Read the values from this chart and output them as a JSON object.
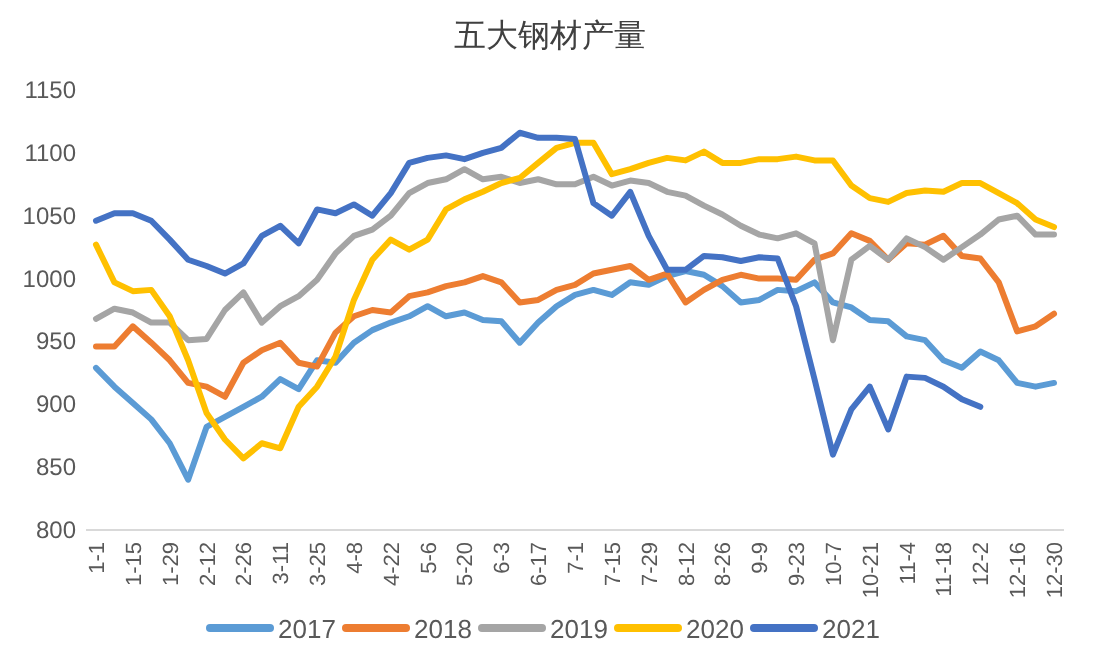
{
  "chart_data": {
    "type": "line",
    "title": "五大钢材产量",
    "categories": [
      "1-1",
      null,
      "1-15",
      null,
      "1-29",
      null,
      "2-12",
      null,
      "2-26",
      null,
      "3-11",
      null,
      "3-25",
      null,
      "4-8",
      null,
      "4-22",
      null,
      "5-6",
      null,
      "5-20",
      null,
      "6-3",
      null,
      "6-17",
      null,
      "7-1",
      null,
      "7-15",
      null,
      "7-29",
      null,
      "8-12",
      null,
      "8-26",
      null,
      "9-9",
      null,
      "9-23",
      null,
      "10-7",
      null,
      "10-21",
      null,
      "11-4",
      null,
      "11-18",
      null,
      "12-2",
      null,
      "12-16",
      null,
      "12-30"
    ],
    "ylim": [
      800,
      1150
    ],
    "yticks": [
      800,
      850,
      900,
      950,
      1000,
      1050,
      1100,
      1150
    ],
    "legend": "bottom",
    "series": [
      {
        "name": "2017",
        "color": "#5b9bd5",
        "values": [
          929,
          914,
          901,
          888,
          869,
          840,
          882,
          890,
          898,
          906,
          920,
          912,
          935,
          933,
          949,
          959,
          965,
          970,
          978,
          970,
          973,
          967,
          966,
          949,
          965,
          978,
          987,
          991,
          987,
          997,
          995,
          1002,
          1006,
          1003,
          994,
          981,
          983,
          991,
          990,
          997,
          981,
          977,
          967,
          966,
          954,
          951,
          935,
          929,
          942,
          935,
          917,
          914,
          917
        ]
      },
      {
        "name": "2018",
        "color": "#ed7d31",
        "values": [
          946,
          946,
          962,
          949,
          935,
          917,
          914,
          906,
          933,
          943,
          949,
          933,
          930,
          957,
          970,
          975,
          973,
          986,
          989,
          994,
          997,
          1002,
          997,
          981,
          983,
          991,
          995,
          1004,
          1007,
          1010,
          999,
          1004,
          981,
          991,
          999,
          1003,
          1000,
          1000,
          999,
          1015,
          1020,
          1036,
          1030,
          1015,
          1028,
          1027,
          1034,
          1018,
          1016,
          997,
          958,
          962,
          972
        ]
      },
      {
        "name": "2019",
        "color": "#a5a5a5",
        "values": [
          968,
          976,
          973,
          965,
          965,
          951,
          952,
          975,
          989,
          965,
          978,
          986,
          999,
          1020,
          1034,
          1039,
          1050,
          1068,
          1076,
          1079,
          1087,
          1079,
          1081,
          1076,
          1079,
          1075,
          1075,
          1081,
          1074,
          1078,
          1076,
          1069,
          1066,
          1058,
          1051,
          1042,
          1035,
          1032,
          1036,
          1028,
          951,
          1015,
          1026,
          1015,
          1032,
          1025,
          1015,
          1025,
          1035,
          1047,
          1050,
          1035,
          1035
        ]
      },
      {
        "name": "2020",
        "color": "#ffc000",
        "values": [
          1027,
          997,
          990,
          991,
          970,
          935,
          893,
          872,
          857,
          869,
          865,
          898,
          914,
          938,
          983,
          1015,
          1031,
          1023,
          1031,
          1055,
          1063,
          1069,
          1076,
          1080,
          1092,
          1104,
          1108,
          1108,
          1083,
          1087,
          1092,
          1096,
          1094,
          1101,
          1092,
          1092,
          1095,
          1095,
          1097,
          1094,
          1094,
          1074,
          1064,
          1061,
          1068,
          1070,
          1069,
          1076,
          1076,
          1068,
          1060,
          1047,
          1041
        ]
      },
      {
        "name": "2021",
        "color": "#4472c4",
        "values": [
          1046,
          1052,
          1052,
          1046,
          1031,
          1015,
          1010,
          1004,
          1012,
          1034,
          1042,
          1028,
          1055,
          1052,
          1059,
          1050,
          1068,
          1092,
          1096,
          1098,
          1095,
          1100,
          1104,
          1116,
          1112,
          1112,
          1111,
          1060,
          1050,
          1069,
          1034,
          1007,
          1007,
          1018,
          1017,
          1014,
          1017,
          1016,
          978,
          920,
          860,
          896,
          914,
          880,
          922,
          921,
          914,
          904,
          898,
          null,
          null,
          null,
          null
        ]
      }
    ]
  }
}
